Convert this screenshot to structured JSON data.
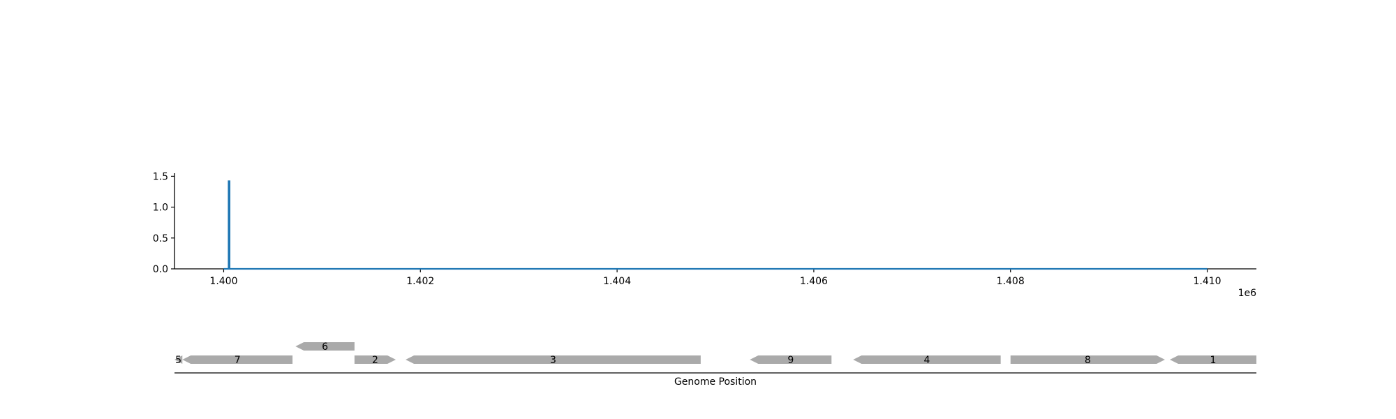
{
  "chart_data": [
    {
      "type": "line",
      "title": "",
      "xlabel": "",
      "ylabel": "",
      "x_offset_label": "1e6",
      "xlim": [
        1399500,
        1410500
      ],
      "ylim": [
        0,
        1.55
      ],
      "x_ticks": [
        1400000,
        1402000,
        1404000,
        1406000,
        1408000,
        1410000
      ],
      "x_tick_labels": [
        "1.400",
        "1.402",
        "1.404",
        "1.406",
        "1.408",
        "1.410"
      ],
      "y_ticks": [
        0,
        0.5,
        1.0,
        1.5
      ],
      "y_tick_labels": [
        "0.0",
        "0.5",
        "1.0",
        "1.5"
      ],
      "grid": false,
      "color": "#1f77b4",
      "series": [
        {
          "points": [
            [
              1400000,
              0
            ],
            [
              1400050,
              0
            ],
            [
              1400050,
              1.42
            ],
            [
              1400060,
              1.42
            ],
            [
              1400060,
              0
            ],
            [
              1410000,
              0
            ]
          ]
        }
      ]
    },
    {
      "type": "gene_track",
      "xlabel": "Genome Position",
      "xlim": [
        1399500,
        1410500
      ],
      "gene_color": "#aaaaaa",
      "genes": [
        {
          "label": "5",
          "start": 1399500,
          "end": 1399580,
          "strand": -1,
          "row": 0
        },
        {
          "label": "7",
          "start": 1399580,
          "end": 1400700,
          "strand": -1,
          "row": 0
        },
        {
          "label": "6",
          "start": 1400730,
          "end": 1401330,
          "strand": -1,
          "row": 1
        },
        {
          "label": "2",
          "start": 1401330,
          "end": 1401750,
          "strand": 1,
          "row": 0
        },
        {
          "label": "3",
          "start": 1401850,
          "end": 1404850,
          "strand": -1,
          "row": 0
        },
        {
          "label": "9",
          "start": 1405350,
          "end": 1406180,
          "strand": -1,
          "row": 0
        },
        {
          "label": "4",
          "start": 1406400,
          "end": 1407900,
          "strand": -1,
          "row": 0
        },
        {
          "label": "8",
          "start": 1408000,
          "end": 1409570,
          "strand": 1,
          "row": 0
        },
        {
          "label": "1",
          "start": 1409620,
          "end": 1410500,
          "strand": -1,
          "row": 0
        }
      ]
    }
  ]
}
